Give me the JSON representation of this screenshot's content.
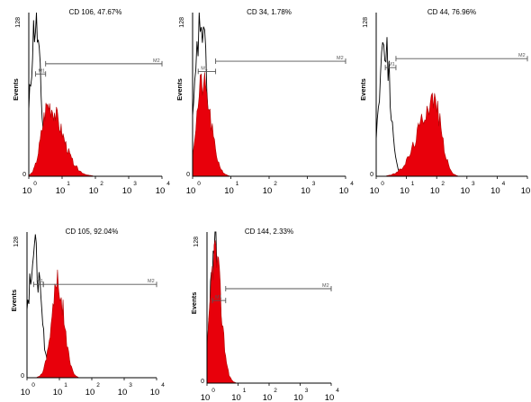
{
  "figure": {
    "colors": {
      "filled": "#e8000b",
      "control": "#000000",
      "axis": "#000000",
      "gate": "#555555"
    }
  },
  "chart_data": [
    {
      "type": "area",
      "title": "CD 106, 47.67%",
      "ylabel": "Events",
      "xscale": "log",
      "xlim": [
        1,
        10000
      ],
      "ylim": [
        0,
        128
      ],
      "ytick_labels": [
        "0",
        "128"
      ],
      "xticks": [
        {
          "value": 1,
          "base": "10",
          "exp": "0"
        },
        {
          "value": 10,
          "base": "10",
          "exp": "1"
        },
        {
          "value": 100,
          "base": "10",
          "exp": "2"
        },
        {
          "value": 1000,
          "base": "10",
          "exp": "3"
        },
        {
          "value": 10000,
          "base": "10",
          "exp": "4"
        }
      ],
      "gates": [
        {
          "label": "M1",
          "start": 1.6,
          "end": 3.2,
          "y": 80
        },
        {
          "label": "M2",
          "start": 3.2,
          "end": 10000,
          "y": 88
        }
      ],
      "series": [
        {
          "style": "outline",
          "peak_log": 0.2,
          "sigma_log": 0.15,
          "peak_count": 120
        },
        {
          "style": "filled",
          "peak_log": 0.58,
          "sigma_left": 0.2,
          "sigma_right": 0.42,
          "peak_count": 55
        }
      ]
    },
    {
      "type": "area",
      "title": "CD 34, 1.78%",
      "ylabel": "Events",
      "xscale": "log",
      "xlim": [
        1,
        10000
      ],
      "ylim": [
        0,
        128
      ],
      "ytick_labels": [
        "0",
        "128"
      ],
      "xticks": [
        {
          "value": 1,
          "base": "10",
          "exp": "0"
        },
        {
          "value": 10,
          "base": "10",
          "exp": "1"
        },
        {
          "value": 100,
          "base": "10",
          "exp": "2"
        },
        {
          "value": 1000,
          "base": "10",
          "exp": "3"
        },
        {
          "value": 10000,
          "base": "10",
          "exp": "4"
        }
      ],
      "gates": [
        {
          "label": "M1",
          "start": 1.4,
          "end": 4.0,
          "y": 82
        },
        {
          "label": "M2",
          "start": 4.0,
          "end": 10000,
          "y": 90
        }
      ],
      "series": [
        {
          "style": "outline",
          "peak_log": 0.22,
          "sigma_log": 0.15,
          "peak_count": 120
        },
        {
          "style": "filled",
          "peak_log": 0.25,
          "sigma_left": 0.15,
          "sigma_right": 0.22,
          "peak_count": 72
        }
      ]
    },
    {
      "type": "area",
      "title": "CD 44, 76.96%",
      "ylabel": "Events",
      "xscale": "log",
      "xlim": [
        1,
        100000
      ],
      "ylim": [
        0,
        128
      ],
      "ytick_labels": [
        "0",
        "128"
      ],
      "xticks": [
        {
          "value": 1,
          "base": "10",
          "exp": "0"
        },
        {
          "value": 10,
          "base": "10",
          "exp": "1"
        },
        {
          "value": 100,
          "base": "10",
          "exp": "2"
        },
        {
          "value": 1000,
          "base": "10",
          "exp": "3"
        },
        {
          "value": 10000,
          "base": "10",
          "exp": "4"
        },
        {
          "value": 100000,
          "base": "10",
          "exp": "5"
        }
      ],
      "gates": [
        {
          "label": "M1",
          "start": 2.0,
          "end": 4.5,
          "y": 85
        },
        {
          "label": "M2",
          "start": 4.5,
          "end": 100000,
          "y": 92
        }
      ],
      "series": [
        {
          "style": "outline",
          "peak_log": 0.28,
          "sigma_log": 0.18,
          "peak_count": 108
        },
        {
          "style": "filled",
          "peak_log": 1.9,
          "sigma_left": 0.5,
          "sigma_right": 0.25,
          "peak_count": 60
        }
      ]
    },
    {
      "type": "area",
      "title": "CD 105, 92.04%",
      "ylabel": "Events",
      "xscale": "log",
      "xlim": [
        1,
        10000
      ],
      "ylim": [
        0,
        128
      ],
      "ytick_labels": [
        "0",
        "128"
      ],
      "xticks": [
        {
          "value": 1,
          "base": "10",
          "exp": "0"
        },
        {
          "value": 10,
          "base": "10",
          "exp": "1"
        },
        {
          "value": 100,
          "base": "10",
          "exp": "2"
        },
        {
          "value": 1000,
          "base": "10",
          "exp": "3"
        },
        {
          "value": 10000,
          "base": "10",
          "exp": "4"
        }
      ],
      "gates": [
        {
          "label": "M1",
          "start": 1.6,
          "end": 3.2,
          "y": 82
        },
        {
          "label": "M2",
          "start": 3.2,
          "end": 10000,
          "y": 82
        }
      ],
      "series": [
        {
          "style": "outline",
          "peak_log": 0.22,
          "sigma_log": 0.2,
          "peak_count": 110
        },
        {
          "style": "filled",
          "peak_log": 0.95,
          "sigma_left": 0.2,
          "sigma_right": 0.2,
          "peak_count": 82
        }
      ]
    },
    {
      "type": "area",
      "title": "CD 144, 2.33%",
      "ylabel": "Events",
      "xscale": "log",
      "xlim": [
        1,
        10000
      ],
      "ylim": [
        0,
        128
      ],
      "ytick_labels": [
        "0",
        "128"
      ],
      "xticks": [
        {
          "value": 1,
          "base": "10",
          "exp": "0"
        },
        {
          "value": 10,
          "base": "10",
          "exp": "1"
        },
        {
          "value": 100,
          "base": "10",
          "exp": "2"
        },
        {
          "value": 1000,
          "base": "10",
          "exp": "3"
        },
        {
          "value": 10000,
          "base": "10",
          "exp": "4"
        }
      ],
      "gates": [
        {
          "label": "M1",
          "start": 1.5,
          "end": 4.0,
          "y": 70
        },
        {
          "label": "M2",
          "start": 4.0,
          "end": 10000,
          "y": 80
        }
      ],
      "series": [
        {
          "style": "outline",
          "peak_log": 0.25,
          "sigma_log": 0.15,
          "peak_count": 120
        },
        {
          "style": "filled",
          "peak_log": 0.25,
          "sigma_left": 0.15,
          "sigma_right": 0.2,
          "peak_count": 110
        }
      ]
    }
  ]
}
